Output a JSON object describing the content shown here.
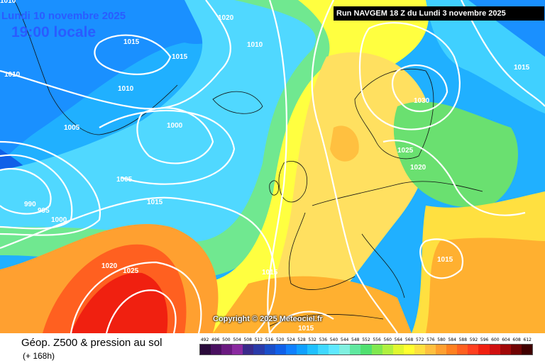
{
  "map": {
    "date_line": "Lundi 10 novembre 2025",
    "time_line": "19:00 locale",
    "run_banner": "Run NAVGEM 18 Z du Lundi 3 novembre 2025",
    "copyright": "Copyright © 2025 Meteociel.fr",
    "isobar_labels": [
      "1010",
      "1020",
      "1010",
      "1015",
      "1015",
      "1010",
      "1010",
      "1005",
      "1000",
      "1005",
      "990",
      "995",
      "1000",
      "1015",
      "1020",
      "1025",
      "1015",
      "1030",
      "1025",
      "1020",
      "1015",
      "1015",
      "1015"
    ]
  },
  "legend": {
    "title": "Géop. Z500 & pression au sol",
    "lead_time": "(+ 168h)",
    "scale_values": [
      "492",
      "496",
      "500",
      "504",
      "508",
      "512",
      "516",
      "520",
      "524",
      "528",
      "532",
      "536",
      "540",
      "544",
      "548",
      "552",
      "556",
      "560",
      "564",
      "568",
      "572",
      "576",
      "580",
      "584",
      "588",
      "592",
      "596",
      "600",
      "604",
      "608",
      "612"
    ],
    "scale_colors": [
      "#2a0a3a",
      "#4a1060",
      "#6a1a80",
      "#8a2aa0",
      "#3a2a8a",
      "#2a3aa8",
      "#1a4ec8",
      "#1060e8",
      "#1080ff",
      "#10a0ff",
      "#20c0ff",
      "#40d8ff",
      "#60e8ff",
      "#80f0e0",
      "#60e8a0",
      "#50e070",
      "#80e850",
      "#b0f040",
      "#e0f830",
      "#ffff30",
      "#ffe040",
      "#ffc040",
      "#ffa030",
      "#ff8020",
      "#ff6020",
      "#ff4020",
      "#f02010",
      "#d01010",
      "#a00808",
      "#700404",
      "#400000"
    ]
  }
}
